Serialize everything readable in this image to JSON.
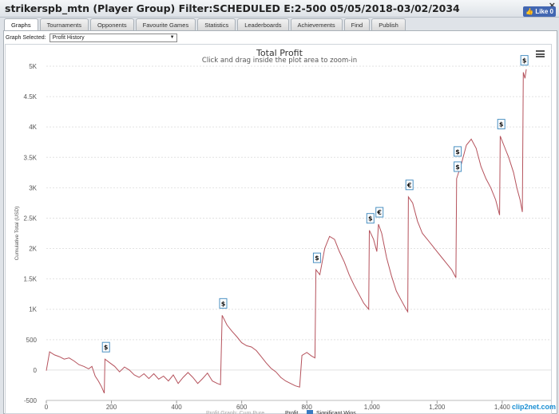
{
  "window": {
    "title": "strikerspb_mtn (Player Group) Filter:SCHEDULED E:2-500 05/05/2018-03/02/2034",
    "close_glyph": "×",
    "like_label": "Like 0"
  },
  "tabs": [
    {
      "label": "Graphs",
      "active": true
    },
    {
      "label": "Tournaments"
    },
    {
      "label": "Opponents"
    },
    {
      "label": "Favourite Games"
    },
    {
      "label": "Statistics"
    },
    {
      "label": "Leaderboards"
    },
    {
      "label": "Achievements"
    },
    {
      "label": "Find"
    },
    {
      "label": "Publish"
    }
  ],
  "graph_select": {
    "label": "Graph Selected:",
    "value": "Profit History"
  },
  "watermark": "clip2net.com",
  "chart_data": {
    "type": "line",
    "title": "Total Profit",
    "subtitle": "Click and drag inside the plot area to zoom-in",
    "ylabel": "Cumulative Total (USD)",
    "xlim": [
      0,
      1550
    ],
    "ylim": [
      -500,
      5000
    ],
    "x_ticks": [
      0,
      200,
      400,
      600,
      800,
      1000,
      1200,
      1400
    ],
    "x_tick_labels": [
      "0",
      "200",
      "400",
      "600",
      "800",
      "1,000",
      "1,200",
      "1,400"
    ],
    "y_ticks": [
      -500,
      0,
      500,
      1000,
      1500,
      2000,
      2500,
      3000,
      3500,
      4000,
      4500,
      5000
    ],
    "y_tick_labels": [
      "-500",
      "0",
      "500",
      "1K",
      "1.5K",
      "2K",
      "2.5K",
      "3K",
      "3.5K",
      "4K",
      "4.5K",
      "5K"
    ],
    "series": [
      {
        "name": "Profit",
        "color": "#b5525c",
        "points": [
          [
            0,
            -10
          ],
          [
            10,
            300
          ],
          [
            25,
            250
          ],
          [
            40,
            220
          ],
          [
            55,
            180
          ],
          [
            70,
            200
          ],
          [
            85,
            150
          ],
          [
            100,
            90
          ],
          [
            115,
            60
          ],
          [
            130,
            20
          ],
          [
            140,
            60
          ],
          [
            150,
            -100
          ],
          [
            160,
            -180
          ],
          [
            170,
            -280
          ],
          [
            178,
            -380
          ],
          [
            180,
            180
          ],
          [
            195,
            120
          ],
          [
            210,
            60
          ],
          [
            225,
            -30
          ],
          [
            240,
            50
          ],
          [
            255,
            0
          ],
          [
            270,
            -80
          ],
          [
            285,
            -120
          ],
          [
            300,
            -60
          ],
          [
            315,
            -140
          ],
          [
            330,
            -60
          ],
          [
            345,
            -150
          ],
          [
            360,
            -100
          ],
          [
            375,
            -180
          ],
          [
            390,
            -80
          ],
          [
            405,
            -220
          ],
          [
            420,
            -120
          ],
          [
            435,
            -40
          ],
          [
            450,
            -120
          ],
          [
            465,
            -220
          ],
          [
            480,
            -140
          ],
          [
            495,
            -50
          ],
          [
            510,
            -180
          ],
          [
            525,
            -220
          ],
          [
            535,
            -240
          ],
          [
            540,
            900
          ],
          [
            555,
            740
          ],
          [
            570,
            640
          ],
          [
            585,
            550
          ],
          [
            600,
            450
          ],
          [
            615,
            400
          ],
          [
            630,
            380
          ],
          [
            645,
            320
          ],
          [
            660,
            220
          ],
          [
            675,
            120
          ],
          [
            690,
            30
          ],
          [
            705,
            -30
          ],
          [
            720,
            -120
          ],
          [
            735,
            -180
          ],
          [
            750,
            -220
          ],
          [
            765,
            -260
          ],
          [
            778,
            -280
          ],
          [
            785,
            240
          ],
          [
            800,
            290
          ],
          [
            815,
            230
          ],
          [
            825,
            200
          ],
          [
            828,
            1650
          ],
          [
            840,
            1570
          ],
          [
            855,
            2000
          ],
          [
            870,
            2200
          ],
          [
            885,
            2150
          ],
          [
            900,
            1950
          ],
          [
            915,
            1780
          ],
          [
            930,
            1570
          ],
          [
            945,
            1400
          ],
          [
            960,
            1250
          ],
          [
            975,
            1100
          ],
          [
            990,
            1000
          ],
          [
            992,
            2300
          ],
          [
            1005,
            2150
          ],
          [
            1015,
            1950
          ],
          [
            1020,
            2400
          ],
          [
            1030,
            2250
          ],
          [
            1045,
            1850
          ],
          [
            1060,
            1550
          ],
          [
            1075,
            1300
          ],
          [
            1090,
            1150
          ],
          [
            1105,
            1000
          ],
          [
            1110,
            960
          ],
          [
            1112,
            2850
          ],
          [
            1125,
            2750
          ],
          [
            1140,
            2450
          ],
          [
            1155,
            2250
          ],
          [
            1170,
            2150
          ],
          [
            1185,
            2050
          ],
          [
            1200,
            1950
          ],
          [
            1215,
            1850
          ],
          [
            1230,
            1750
          ],
          [
            1245,
            1650
          ],
          [
            1258,
            1520
          ],
          [
            1260,
            3150
          ],
          [
            1275,
            3400
          ],
          [
            1290,
            3700
          ],
          [
            1305,
            3800
          ],
          [
            1320,
            3650
          ],
          [
            1335,
            3350
          ],
          [
            1350,
            3150
          ],
          [
            1365,
            3000
          ],
          [
            1380,
            2800
          ],
          [
            1392,
            2550
          ],
          [
            1394,
            3850
          ],
          [
            1405,
            3700
          ],
          [
            1420,
            3500
          ],
          [
            1435,
            3250
          ],
          [
            1445,
            3000
          ],
          [
            1455,
            2800
          ],
          [
            1462,
            2600
          ],
          [
            1465,
            4900
          ],
          [
            1470,
            4800
          ],
          [
            1474,
            4950
          ]
        ]
      }
    ],
    "markers": [
      {
        "x": 182,
        "y": 180,
        "label": "$"
      },
      {
        "x": 542,
        "y": 900,
        "label": "$"
      },
      {
        "x": 830,
        "y": 1650,
        "label": "$"
      },
      {
        "x": 994,
        "y": 2300,
        "label": "$"
      },
      {
        "x": 1022,
        "y": 2400,
        "label": "€"
      },
      {
        "x": 1114,
        "y": 2850,
        "label": "€"
      },
      {
        "x": 1262,
        "y": 3150,
        "label": "$"
      },
      {
        "x": 1262,
        "y": 3400,
        "label": "$"
      },
      {
        "x": 1396,
        "y": 3850,
        "label": "$"
      },
      {
        "x": 1467,
        "y": 4900,
        "label": "$"
      }
    ],
    "legend_items": [
      {
        "label": "Profit Graph: Cum Pure"
      },
      {
        "label": "Profit"
      },
      {
        "label": "Significant Wins"
      }
    ]
  }
}
